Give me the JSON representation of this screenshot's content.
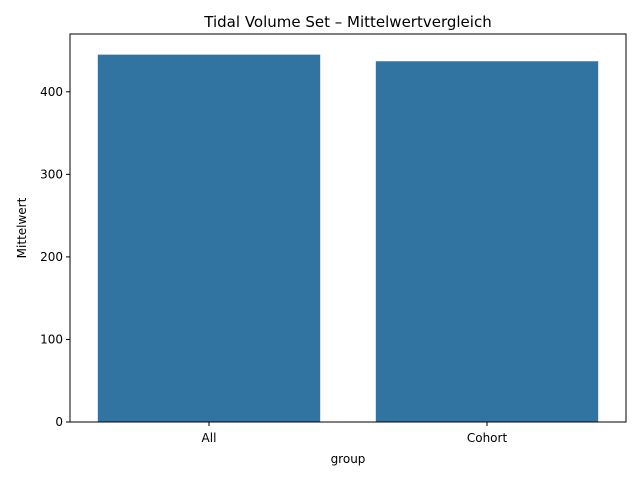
{
  "chart_data": {
    "type": "bar",
    "title": "Tidal Volume Set – Mittelwertvergleich",
    "xlabel": "group",
    "ylabel": "Mittelwert",
    "categories": [
      "All",
      "Cohort"
    ],
    "values": [
      445,
      437
    ],
    "ylim": [
      0,
      470
    ],
    "yticks": [
      0,
      100,
      200,
      300,
      400
    ],
    "grid": false,
    "legend": "none",
    "bar_color": "#3274a1"
  }
}
